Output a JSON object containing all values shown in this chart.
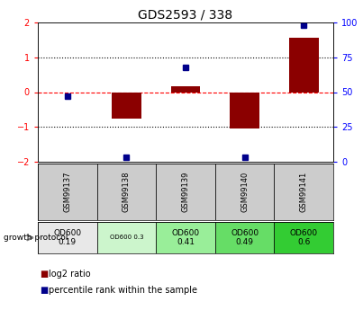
{
  "title": "GDS2593 / 338",
  "samples": [
    "GSM99137",
    "GSM99138",
    "GSM99139",
    "GSM99140",
    "GSM99141"
  ],
  "log2_ratio": [
    0.0,
    -0.75,
    0.18,
    -1.05,
    1.55
  ],
  "percentile_rank": [
    47,
    3,
    68,
    3,
    98
  ],
  "bar_color": "#8B0000",
  "dot_color": "#00008B",
  "ylim_left": [
    -2,
    2
  ],
  "ylim_right": [
    0,
    100
  ],
  "yticks_left": [
    -2,
    -1,
    0,
    1,
    2
  ],
  "yticks_right": [
    0,
    25,
    50,
    75,
    100
  ],
  "dotted_line_vals": [
    -1,
    1
  ],
  "red_dashed_val": 0,
  "growth_protocol_labels": [
    "OD600\n0.19",
    "OD600 0.3",
    "OD600\n0.41",
    "OD600\n0.49",
    "OD600\n0.6"
  ],
  "growth_protocol_colors": [
    "#e8e8e8",
    "#ccf5cc",
    "#99ee99",
    "#66dd66",
    "#33cc33"
  ],
  "sample_bg_color": "#cccccc",
  "background_color": "#ffffff",
  "legend_red_label": "log2 ratio",
  "legend_blue_label": "percentile rank within the sample"
}
